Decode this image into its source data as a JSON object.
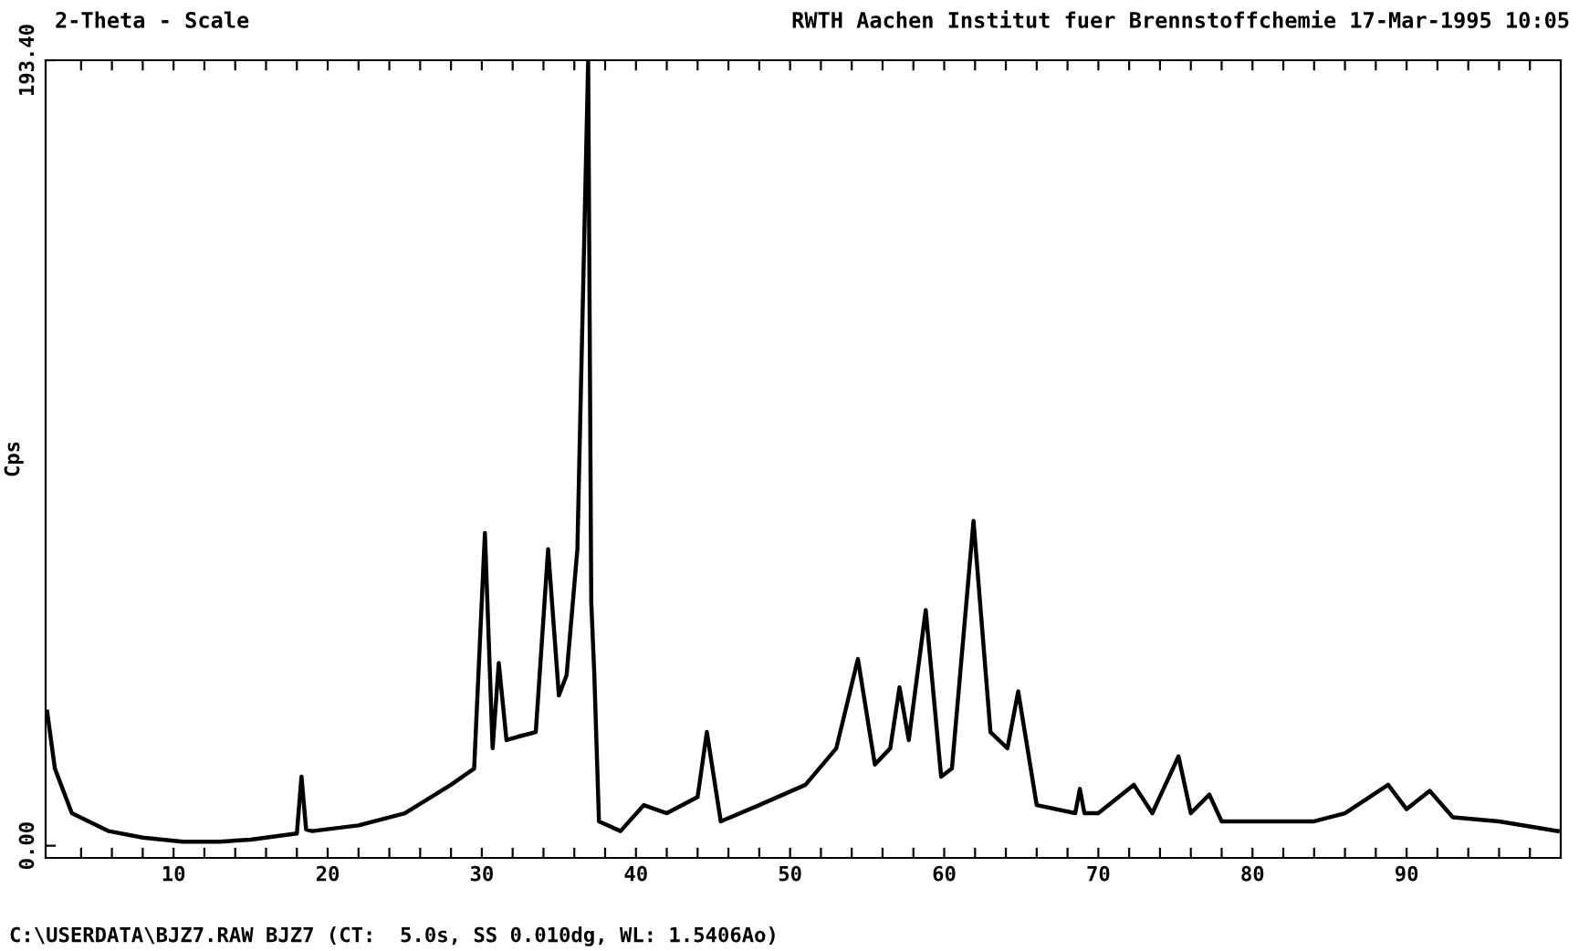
{
  "chart_data": {
    "type": "line",
    "title": "2-Theta - Scale",
    "subtitle": "RWTH Aachen Institut fuer Brennstoffchemie 17-Mar-1995 10:05",
    "ylabel": "Cps",
    "annotations": [
      "C:\\USERDATA\\BJZ7.RAW BJZ7 (CT:  5.0s, SS 0.010dg, WL: 1.5406Ao)"
    ],
    "x": [
      1.8,
      2.3,
      3.4,
      5.8,
      8,
      10.6,
      13,
      15,
      18,
      18.3,
      18.6,
      19,
      22,
      25,
      28,
      29.5,
      30.2,
      30.7,
      31.1,
      31.6,
      32.5,
      33.5,
      34.3,
      35,
      35.5,
      36.2,
      36.9,
      37.1,
      37.3,
      37.6,
      39,
      40.5,
      42,
      44,
      44.6,
      45.5,
      48,
      51,
      53,
      54.4,
      55.5,
      56.5,
      57.1,
      57.7,
      58.8,
      59.8,
      60.5,
      61.9,
      63,
      64.1,
      64.8,
      66,
      68.5,
      68.8,
      69.1,
      70,
      72.3,
      73.5,
      75.2,
      76,
      77.2,
      78,
      80,
      84,
      86,
      88.8,
      90,
      91.5,
      93,
      96,
      99.8
    ],
    "series": [
      {
        "color": "#000000",
        "values": [
          33,
          19,
          8,
          3.6,
          2,
          1,
          1,
          1.5,
          3,
          17,
          4,
          3.6,
          5,
          8,
          15,
          19,
          77,
          24,
          45,
          26,
          27,
          28,
          73,
          37,
          42,
          73,
          193.4,
          60,
          42,
          6,
          3.6,
          10,
          8,
          12,
          28,
          6,
          10,
          15,
          24,
          46,
          20,
          24,
          39,
          26,
          58,
          17,
          19,
          80,
          28,
          24,
          38,
          10,
          8,
          14,
          8,
          8,
          15,
          8,
          22,
          8,
          12.6,
          6,
          6,
          6,
          8,
          15,
          9,
          13.5,
          7,
          6,
          3.6
        ]
      }
    ],
    "xlim": [
      1.7,
      100
    ],
    "xticks": [
      {
        "value": 4,
        "label": null
      },
      {
        "value": 6,
        "label": null
      },
      {
        "value": 8,
        "label": null
      },
      10,
      {
        "value": 12,
        "label": null
      },
      {
        "value": 14,
        "label": null
      },
      {
        "value": 16,
        "label": null
      },
      {
        "value": 18,
        "label": null
      },
      20,
      {
        "value": 22,
        "label": null
      },
      {
        "value": 24,
        "label": null
      },
      {
        "value": 26,
        "label": null
      },
      {
        "value": 28,
        "label": null
      },
      30,
      {
        "value": 32,
        "label": null
      },
      {
        "value": 34,
        "label": null
      },
      {
        "value": 36,
        "label": null
      },
      {
        "value": 38,
        "label": null
      },
      40,
      {
        "value": 42,
        "label": null
      },
      {
        "value": 44,
        "label": null
      },
      {
        "value": 46,
        "label": null
      },
      {
        "value": 48,
        "label": null
      },
      50,
      {
        "value": 52,
        "label": null
      },
      {
        "value": 54,
        "label": null
      },
      {
        "value": 56,
        "label": null
      },
      {
        "value": 58,
        "label": null
      },
      60,
      {
        "value": 62,
        "label": null
      },
      {
        "value": 64,
        "label": null
      },
      {
        "value": 66,
        "label": null
      },
      {
        "value": 68,
        "label": null
      },
      70,
      {
        "value": 72,
        "label": null
      },
      {
        "value": 74,
        "label": null
      },
      {
        "value": 76,
        "label": null
      },
      {
        "value": 78,
        "label": null
      },
      80,
      {
        "value": 82,
        "label": null
      },
      {
        "value": 84,
        "label": null
      },
      {
        "value": 86,
        "label": null
      },
      {
        "value": 88,
        "label": null
      },
      90,
      {
        "value": 92,
        "label": null
      },
      {
        "value": 94,
        "label": null
      },
      {
        "value": 96,
        "label": null
      },
      {
        "value": 98,
        "label": null
      }
    ],
    "ylim": [
      -3,
      193.4
    ],
    "yticks": [
      {
        "value": 0,
        "label": "0.00"
      },
      {
        "value": 193.4,
        "label": "193.40"
      }
    ],
    "grid": false,
    "legend": false
  }
}
